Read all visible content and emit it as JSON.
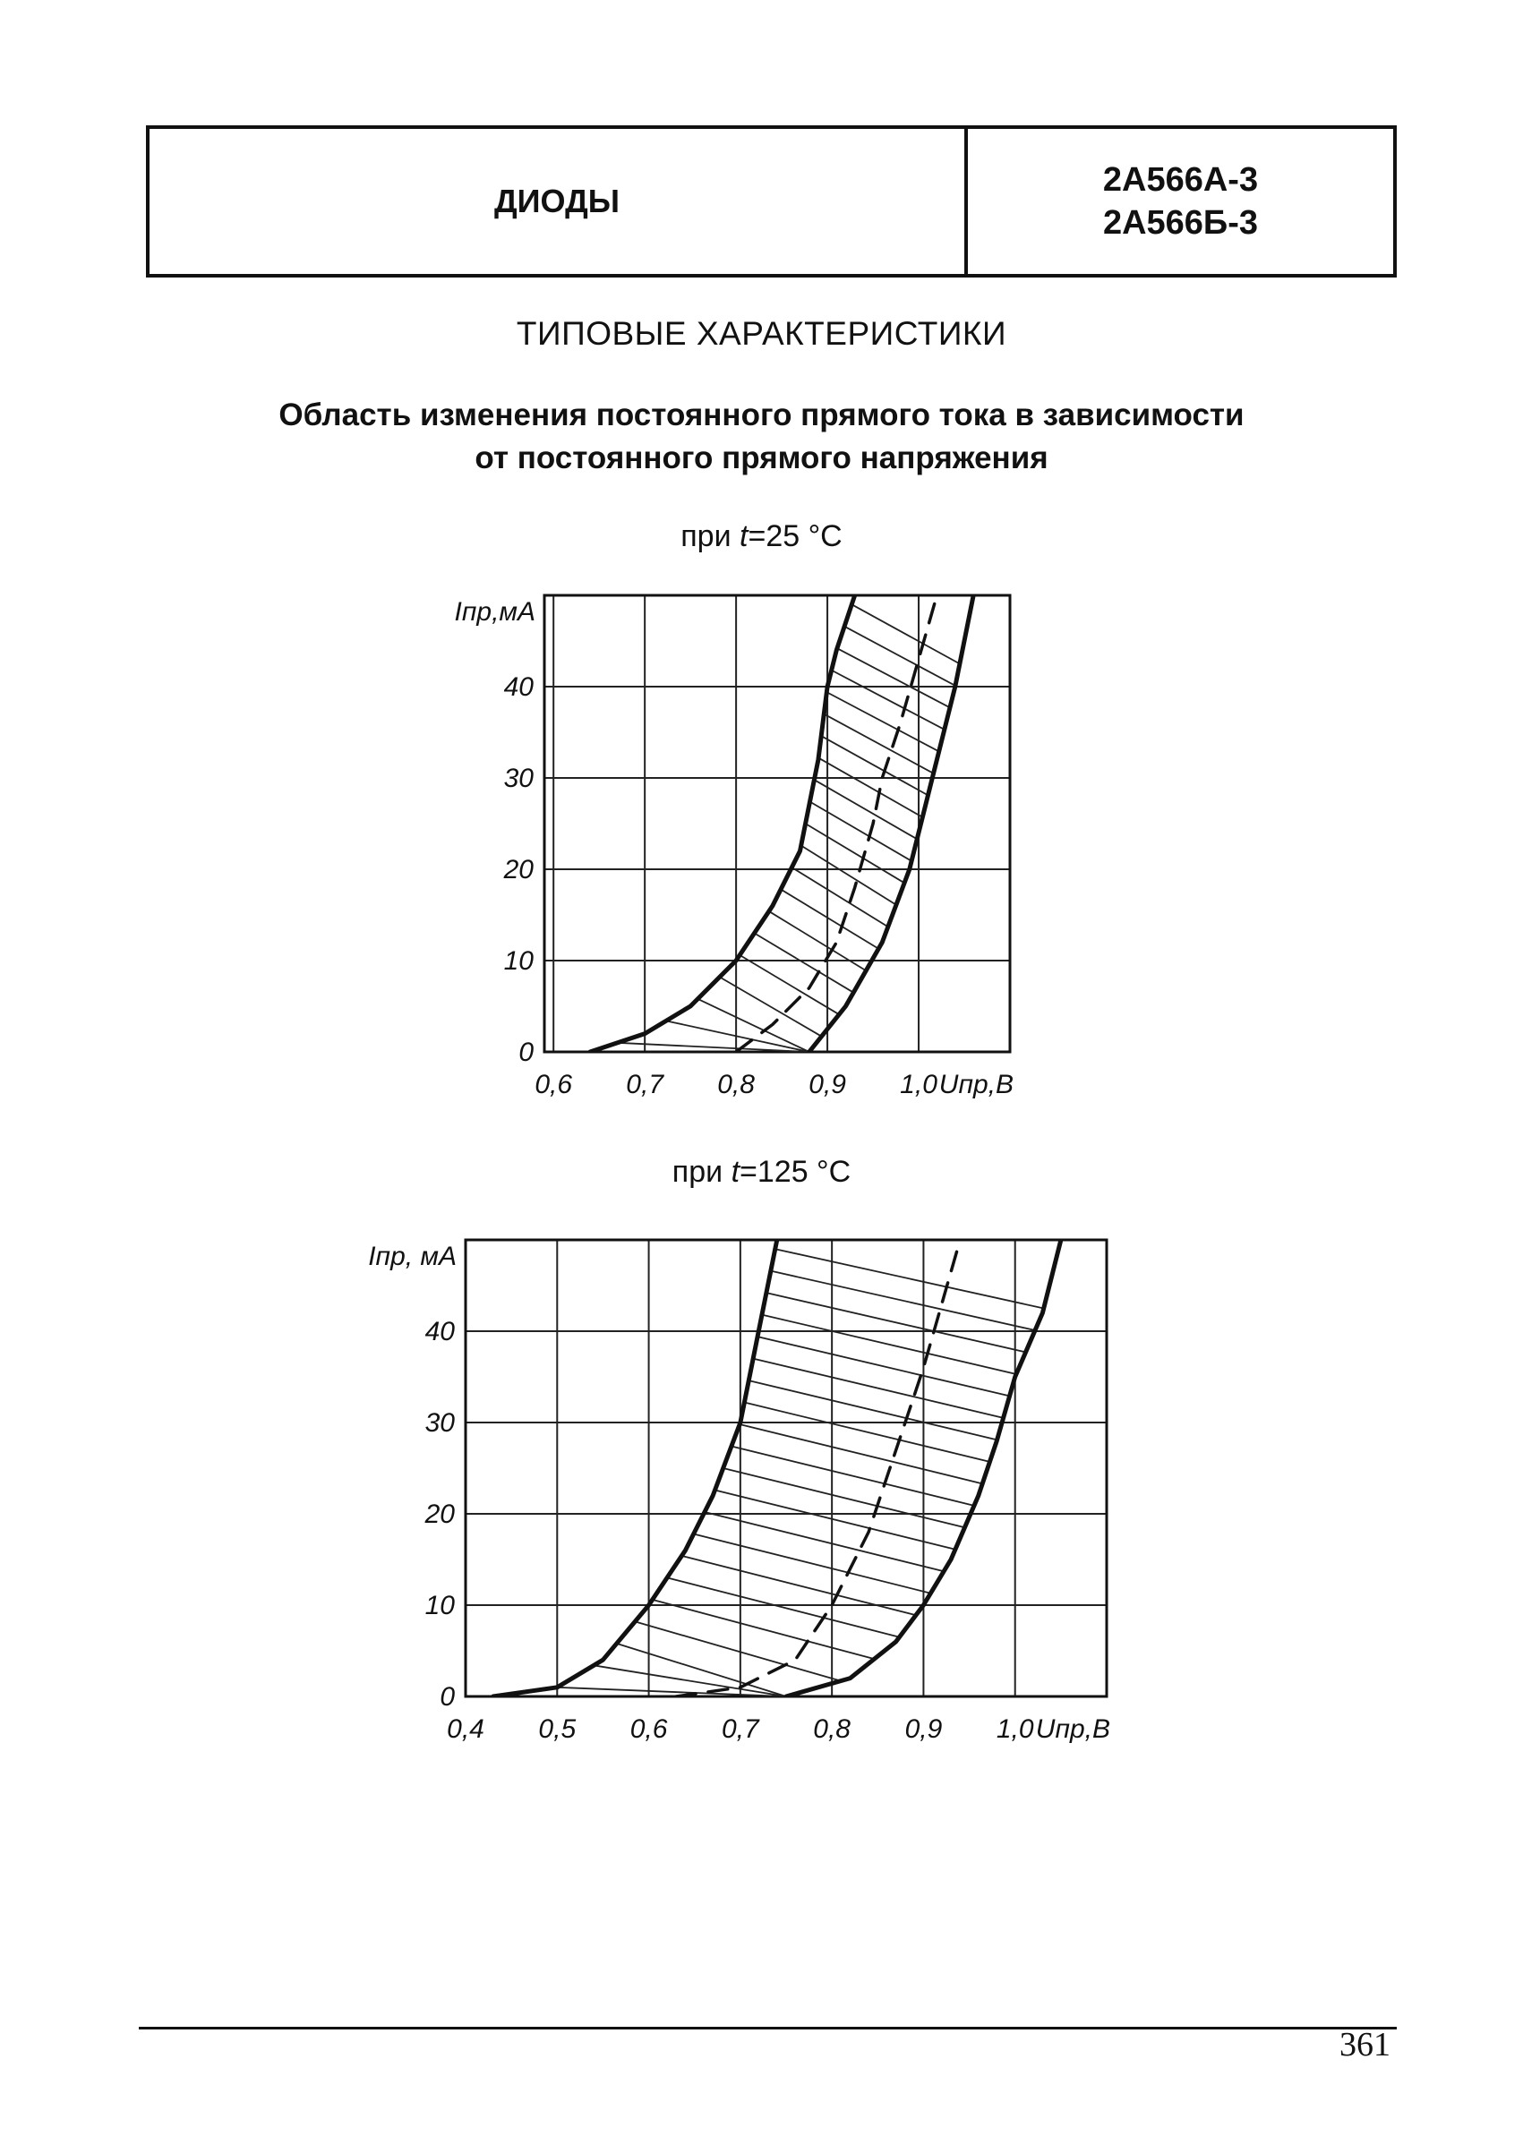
{
  "header": {
    "category": "ДИОДЫ",
    "part_numbers": [
      "2А566А-3",
      "2А566Б-3"
    ]
  },
  "section_title": "ТИПОВЫЕ ХАРАКТЕРИСТИКИ",
  "subtitle_lines": [
    "Область изменения постоянного прямого тока в зависимости",
    "от постоянного прямого напряжения"
  ],
  "page_number": "361",
  "chart_data": [
    {
      "type": "area",
      "condition_prefix": "при ",
      "condition_var": "t",
      "condition_suffix": "=25 °С",
      "ylabel": "Iпр,мА",
      "xlabel": "Uпр,В",
      "xlim": [
        0.59,
        1.1
      ],
      "ylim": [
        0,
        50
      ],
      "x_ticks": [
        0.6,
        0.7,
        0.8,
        0.9,
        1.0
      ],
      "x_tick_labels": [
        "0,6",
        "0,7",
        "0,8",
        "0,9",
        "1,0"
      ],
      "y_ticks": [
        0,
        10,
        20,
        30,
        40
      ],
      "y_tick_labels": [
        "0",
        "10",
        "20",
        "30",
        "40"
      ],
      "grid": true,
      "hatched_region": "between left and right boundaries",
      "series": [
        {
          "style": "solid",
          "x": [
            0.64,
            0.7,
            0.75,
            0.8,
            0.84,
            0.87,
            0.89,
            0.9,
            0.91,
            0.93
          ],
          "y": [
            0,
            2,
            5,
            10,
            16,
            22,
            32,
            40,
            44,
            50
          ]
        },
        {
          "style": "dashed",
          "x": [
            0.8,
            0.84,
            0.88,
            0.91,
            0.93,
            0.95,
            0.96,
            0.98,
            1.0,
            1.02
          ],
          "y": [
            0,
            3,
            7,
            12,
            18,
            25,
            30,
            36,
            43,
            50
          ]
        },
        {
          "style": "solid",
          "x": [
            0.88,
            0.92,
            0.96,
            0.99,
            1.01,
            1.03,
            1.04,
            1.06
          ],
          "y": [
            0,
            5,
            12,
            20,
            28,
            36,
            40,
            50
          ]
        }
      ]
    },
    {
      "type": "area",
      "condition_prefix": "при ",
      "condition_var": "t",
      "condition_suffix": "=125 °С",
      "ylabel": "Iпр, мА",
      "xlabel": "Uпр,В",
      "xlim": [
        0.4,
        1.1
      ],
      "ylim": [
        0,
        50
      ],
      "x_ticks": [
        0.4,
        0.5,
        0.6,
        0.7,
        0.8,
        0.9,
        1.0
      ],
      "x_tick_labels": [
        "0,4",
        "0,5",
        "0,6",
        "0,7",
        "0,8",
        "0,9",
        "1,0"
      ],
      "y_ticks": [
        0,
        10,
        20,
        30,
        40
      ],
      "y_tick_labels": [
        "0",
        "10",
        "20",
        "30",
        "40"
      ],
      "grid": true,
      "hatched_region": "between left and right boundaries",
      "series": [
        {
          "style": "solid",
          "x": [
            0.43,
            0.5,
            0.55,
            0.6,
            0.64,
            0.67,
            0.7,
            0.72,
            0.74
          ],
          "y": [
            0,
            1,
            4,
            10,
            16,
            22,
            30,
            40,
            50
          ]
        },
        {
          "style": "dashed",
          "x": [
            0.63,
            0.7,
            0.76,
            0.8,
            0.84,
            0.86,
            0.88,
            0.9,
            0.92,
            0.94
          ],
          "y": [
            0,
            1,
            4,
            10,
            18,
            24,
            30,
            36,
            43,
            50
          ]
        },
        {
          "style": "solid",
          "x": [
            0.75,
            0.82,
            0.87,
            0.9,
            0.93,
            0.96,
            0.98,
            1.0,
            1.03,
            1.05
          ],
          "y": [
            0,
            2,
            6,
            10,
            15,
            22,
            28,
            35,
            42,
            50
          ]
        }
      ]
    }
  ]
}
